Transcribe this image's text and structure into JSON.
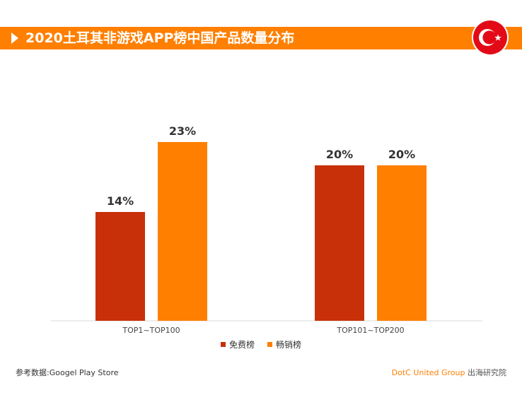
{
  "header": {
    "title": "2020土耳其非游戏APP榜中国产品数量分布",
    "flag_icon": "turkey-flag-icon"
  },
  "colors": {
    "accent": "#ff7f00",
    "free": "#c8300a",
    "grossing": "#ff7f00"
  },
  "chart_data": {
    "type": "bar",
    "title": "2020土耳其非游戏APP榜中国产品数量分布",
    "categories": [
      "TOP1~TOP100",
      "TOP101~TOP200"
    ],
    "series": [
      {
        "name": "免费榜",
        "values": [
          14,
          20
        ],
        "labels": [
          "14%",
          "20%"
        ],
        "color": "#c8300a"
      },
      {
        "name": "畅销榜",
        "values": [
          23,
          20
        ],
        "labels": [
          "23%",
          "20%"
        ],
        "color": "#ff7f00"
      }
    ],
    "unit": "%",
    "ylim": [
      0,
      30
    ],
    "grid": false,
    "legend_position": "bottom"
  },
  "footer": {
    "source": "参考数据:Googel Play Store",
    "brand": "DotC United Group",
    "suffix": " 出海研究院"
  }
}
